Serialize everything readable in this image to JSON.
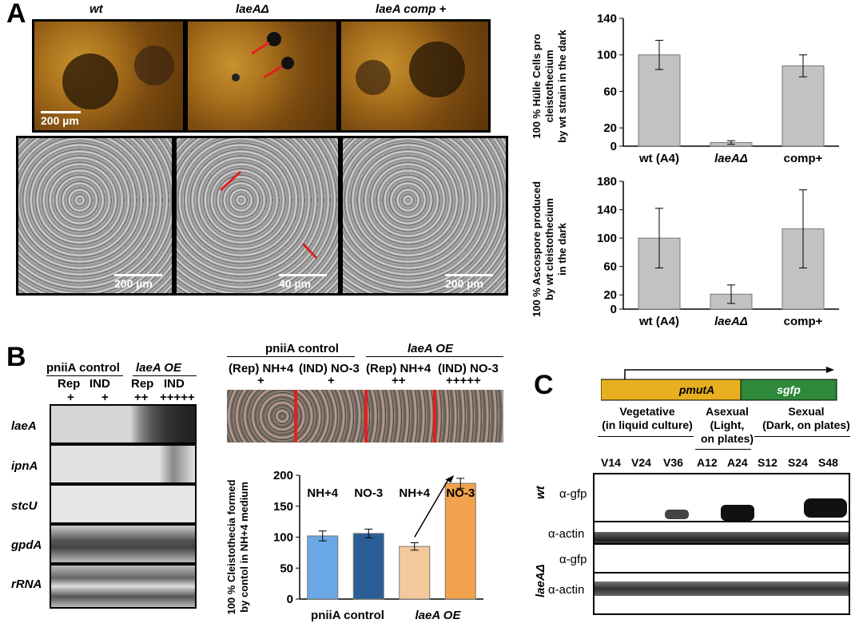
{
  "panelA": {
    "letter": "A",
    "strains": [
      "wt",
      "laeAΔ",
      "laeA comp +"
    ],
    "scalebars_top": [
      "200 µm"
    ],
    "scalebars_bottom": [
      "200 µm",
      "40 µm",
      "200 µm"
    ],
    "chart_top": {
      "ylabel_lines": [
        "100 % Hülle Cells pro",
        "cleistothecium",
        "by wt strain in the dark"
      ],
      "yticks": [
        "0",
        "20",
        "60",
        "100",
        "140"
      ]
    },
    "chart_bottom": {
      "ylabel_lines": [
        "100 % Ascospore produced",
        "by wt cleistothecium",
        "in the dark"
      ],
      "yticks": [
        "0",
        "20",
        "60",
        "100",
        "140",
        "180"
      ]
    }
  },
  "panelB": {
    "letter": "B",
    "group_labels": [
      "pniiA control",
      "laeA OE"
    ],
    "col_labels": [
      "Rep",
      "IND",
      "Rep",
      "IND"
    ],
    "col_levels": [
      "+",
      "+",
      "++",
      "+++++"
    ],
    "genes": [
      "laeA",
      "ipnA",
      "stcU",
      "gpdA",
      "rRNA"
    ],
    "plate_groups": [
      "pniiA control",
      "laeA OE"
    ],
    "plate_conditions": [
      "(Rep) NH+4",
      "(IND) NO-3",
      "(Rep) NH+4",
      "(IND) NO-3"
    ],
    "plate_levels": [
      "+",
      "+",
      "++",
      "+++++"
    ],
    "bar_chart": {
      "ylabel_lines": [
        "100 % Cleistothecia formed",
        "by contol in NH+4 medium"
      ],
      "yticks": [
        "0",
        "50",
        "100",
        "150",
        "200"
      ],
      "bar_labels": [
        "NH+4",
        "NO-3",
        "NH+4",
        "NO-3"
      ],
      "xgroups": [
        "pniiA control",
        "laeA OE"
      ]
    }
  },
  "panelC": {
    "letter": "C",
    "construct": [
      "pmutA",
      "sgfp"
    ],
    "stages": [
      {
        "lines": [
          "Vegetative",
          "(in liquid culture)"
        ]
      },
      {
        "lines": [
          "Asexual",
          "(Light,",
          "on plates)"
        ]
      },
      {
        "lines": [
          "Sexual",
          "(Dark, on plates)"
        ]
      }
    ],
    "lanes": [
      "V14",
      "V24",
      "V36",
      "A12",
      "A24",
      "S12",
      "S24",
      "S48"
    ],
    "rows": [
      {
        "strain": "wt",
        "probes": [
          "α-gfp",
          "α-actin"
        ]
      },
      {
        "strain": "laeAΔ",
        "probes": [
          "α-gfp",
          "α-actin"
        ]
      }
    ]
  },
  "chart_data": [
    {
      "type": "bar",
      "categories": [
        "wt (A4)",
        "laeAΔ",
        "comp+"
      ],
      "values": [
        100,
        4,
        88
      ],
      "errors": [
        16,
        2,
        12
      ],
      "ylabel": "100 % Hülle Cells pro cleistothecium by wt strain in the dark",
      "ylim": [
        0,
        140
      ]
    },
    {
      "type": "bar",
      "categories": [
        "wt (A4)",
        "laeAΔ",
        "comp+"
      ],
      "values": [
        100,
        21,
        113
      ],
      "errors": [
        42,
        13,
        55
      ],
      "ylabel": "100 % Ascospore produced by wt cleistothecium in the dark",
      "ylim": [
        0,
        180
      ]
    },
    {
      "type": "bar",
      "categories": [
        "NH+4",
        "NO-3",
        "NH+4",
        "NO-3"
      ],
      "groups": [
        "pniiA control",
        "pniiA control",
        "laeA OE",
        "laeA OE"
      ],
      "values": [
        102,
        106,
        85,
        187
      ],
      "errors": [
        8,
        7,
        6,
        8
      ],
      "colors": [
        "#6aa8e6",
        "#2a5e96",
        "#f3c99c",
        "#f2a24c"
      ],
      "ylabel": "100 % Cleistothecia formed by contol in NH+4 medium",
      "ylim": [
        0,
        200
      ]
    }
  ]
}
